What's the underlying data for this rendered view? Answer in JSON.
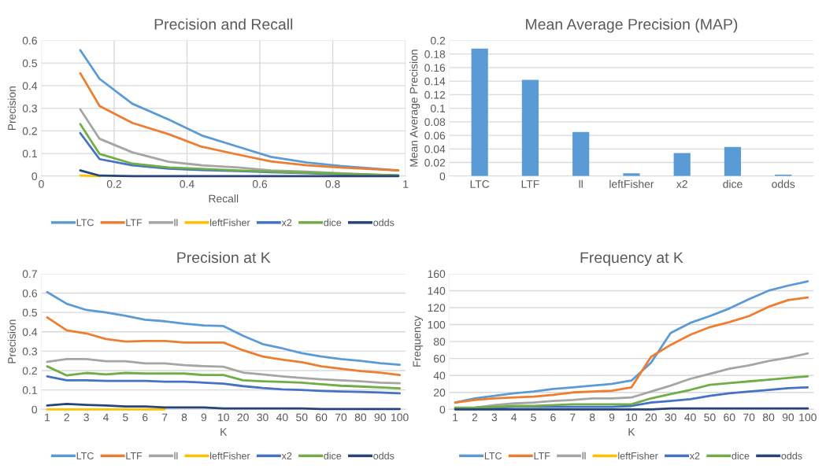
{
  "chart_data": [
    {
      "type": "line",
      "title": "Precision and Recall",
      "xlabel": "Recall",
      "ylabel": "Precision",
      "x": [
        0.107,
        0.16,
        0.25,
        0.35,
        0.44,
        0.54,
        0.63,
        0.73,
        0.82,
        0.98
      ],
      "xlim": [
        0,
        1
      ],
      "xticks": [
        0,
        0.2,
        0.4,
        0.6,
        0.8,
        1
      ],
      "ylim": [
        0,
        0.6
      ],
      "yticks": [
        0,
        0.1,
        0.2,
        0.3,
        0.4,
        0.5,
        0.6
      ],
      "grid": true,
      "legend": "bottom",
      "marker": "none",
      "line_style": "solid",
      "series": [
        {
          "name": "LTC",
          "color": "#5b9bd5",
          "values": [
            0.557,
            0.43,
            0.32,
            0.25,
            0.18,
            0.13,
            0.085,
            0.06,
            0.045,
            0.025
          ]
        },
        {
          "name": "LTF",
          "color": "#ed7d31",
          "values": [
            0.455,
            0.31,
            0.235,
            0.185,
            0.13,
            0.095,
            0.065,
            0.048,
            0.038,
            0.025
          ]
        },
        {
          "name": "ll",
          "color": "#a5a5a5",
          "values": [
            0.295,
            0.165,
            0.105,
            0.063,
            0.048,
            0.038,
            0.025,
            0.02,
            0.013,
            0.002
          ]
        },
        {
          "name": "leftFisher",
          "color": "#ffc000",
          "values": [
            0.002,
            0,
            null,
            null,
            null,
            null,
            null,
            null,
            null,
            null
          ]
        },
        {
          "name": "x2",
          "color": "#4472c4",
          "values": [
            0.19,
            0.075,
            0.048,
            0.033,
            0.027,
            0.022,
            0.017,
            0.013,
            0.008,
            0.002
          ]
        },
        {
          "name": "dice",
          "color": "#70ad47",
          "values": [
            0.23,
            0.098,
            0.055,
            0.038,
            0.032,
            0.025,
            0.02,
            0.015,
            0.01,
            0.003
          ]
        },
        {
          "name": "odds",
          "color": "#264478",
          "values": [
            0.025,
            0.002,
            0,
            0,
            0,
            0,
            0,
            0,
            0,
            0
          ]
        }
      ]
    },
    {
      "type": "bar",
      "title": "Mean Average Precision (MAP)",
      "ylabel": "Mean Average Precision",
      "categories": [
        "LTC",
        "LTF",
        "ll",
        "leftFisher",
        "x2",
        "dice",
        "odds"
      ],
      "values": [
        0.188,
        0.142,
        0.065,
        0.004,
        0.034,
        0.043,
        0.002
      ],
      "color": "#5b9bd5",
      "ylim": [
        0,
        0.2
      ],
      "yticks": [
        0,
        0.02,
        0.04,
        0.06,
        0.08,
        0.1,
        0.12,
        0.14,
        0.16,
        0.18,
        0.2
      ],
      "grid": "y"
    },
    {
      "type": "line",
      "title": "Precision at K",
      "xlabel": "K",
      "ylabel": "Precision",
      "categories": [
        "1",
        "2",
        "3",
        "4",
        "5",
        "6",
        "7",
        "8",
        "9",
        "10",
        "20",
        "30",
        "40",
        "50",
        "60",
        "70",
        "80",
        "90",
        "100"
      ],
      "ylim": [
        0,
        0.7
      ],
      "yticks": [
        0,
        0.1,
        0.2,
        0.3,
        0.4,
        0.5,
        0.6,
        0.7
      ],
      "grid": "y",
      "legend": "bottom",
      "marker": "none",
      "line_style": "solid",
      "series": [
        {
          "name": "LTC",
          "color": "#5b9bd5",
          "values": [
            0.605,
            0.545,
            0.513,
            0.5,
            0.483,
            0.463,
            0.455,
            0.442,
            0.433,
            0.43,
            0.38,
            0.337,
            0.315,
            0.29,
            0.273,
            0.26,
            0.25,
            0.238,
            0.23
          ]
        },
        {
          "name": "LTF",
          "color": "#ed7d31",
          "values": [
            0.475,
            0.408,
            0.392,
            0.363,
            0.35,
            0.353,
            0.353,
            0.345,
            0.345,
            0.345,
            0.305,
            0.273,
            0.257,
            0.243,
            0.222,
            0.21,
            0.198,
            0.19,
            0.177
          ]
        },
        {
          "name": "ll",
          "color": "#a5a5a5",
          "values": [
            0.245,
            0.26,
            0.26,
            0.248,
            0.248,
            0.237,
            0.237,
            0.228,
            0.223,
            0.22,
            0.19,
            0.18,
            0.17,
            0.162,
            0.155,
            0.15,
            0.145,
            0.138,
            0.135
          ]
        },
        {
          "name": "leftFisher",
          "color": "#ffc000",
          "values": [
            0,
            0,
            0,
            0,
            0,
            0,
            0,
            null,
            null,
            null,
            null,
            null,
            null,
            null,
            null,
            null,
            null,
            null,
            null
          ]
        },
        {
          "name": "x2",
          "color": "#4472c4",
          "values": [
            0.17,
            0.15,
            0.15,
            0.147,
            0.147,
            0.147,
            0.143,
            0.143,
            0.138,
            0.133,
            0.12,
            0.11,
            0.103,
            0.1,
            0.095,
            0.092,
            0.09,
            0.087,
            0.083
          ]
        },
        {
          "name": "dice",
          "color": "#70ad47",
          "values": [
            0.222,
            0.175,
            0.188,
            0.18,
            0.188,
            0.185,
            0.185,
            0.185,
            0.177,
            0.177,
            0.15,
            0.145,
            0.142,
            0.138,
            0.13,
            0.122,
            0.118,
            0.113,
            0.108
          ]
        },
        {
          "name": "odds",
          "color": "#264478",
          "values": [
            0.02,
            0.028,
            0.023,
            0.02,
            0.015,
            0.015,
            0.01,
            0.01,
            0.01,
            0.005,
            0.005,
            0.005,
            0.005,
            0.005,
            0.002,
            0.002,
            0.002,
            0.002,
            0.002
          ]
        }
      ]
    },
    {
      "type": "line",
      "title": "Frequency at K",
      "xlabel": "K",
      "ylabel": "Frequency",
      "categories": [
        "1",
        "2",
        "3",
        "4",
        "5",
        "6",
        "7",
        "8",
        "9",
        "10",
        "20",
        "30",
        "40",
        "50",
        "60",
        "70",
        "80",
        "90",
        "100"
      ],
      "ylim": [
        0,
        160
      ],
      "yticks": [
        0,
        20,
        40,
        60,
        80,
        100,
        120,
        140,
        160
      ],
      "grid": "y",
      "legend": "bottom",
      "marker": "none",
      "line_style": "solid",
      "series": [
        {
          "name": "LTC",
          "color": "#5b9bd5",
          "values": [
            8,
            13,
            16,
            19,
            21,
            24,
            26,
            28,
            30,
            34,
            55,
            90,
            102,
            110,
            119,
            130,
            140,
            146,
            151
          ]
        },
        {
          "name": "LTF",
          "color": "#ed7d31",
          "values": [
            8,
            11,
            13,
            14,
            15,
            17,
            20,
            21,
            22,
            26,
            62,
            76,
            88,
            97,
            103,
            110,
            121,
            129,
            132
          ]
        },
        {
          "name": "ll",
          "color": "#a5a5a5",
          "values": [
            1,
            2,
            5,
            7,
            8,
            10,
            11,
            13,
            13,
            14,
            21,
            28,
            36,
            42,
            48,
            52,
            57,
            61,
            66
          ]
        },
        {
          "name": "leftFisher",
          "color": "#ffc000",
          "values": [
            null,
            null,
            null,
            null,
            null,
            null,
            null,
            null,
            null,
            null,
            null,
            null,
            null,
            null,
            null,
            null,
            null,
            null,
            null
          ]
        },
        {
          "name": "x2",
          "color": "#4472c4",
          "values": [
            1,
            1,
            2,
            3,
            3,
            3,
            3,
            3,
            3,
            4,
            8,
            10,
            12,
            16,
            19,
            21,
            23,
            25,
            26
          ]
        },
        {
          "name": "dice",
          "color": "#70ad47",
          "values": [
            2,
            2,
            3,
            4,
            4,
            5,
            6,
            6,
            6,
            6,
            13,
            18,
            23,
            29,
            31,
            33,
            35,
            37,
            39
          ]
        },
        {
          "name": "odds",
          "color": "#264478",
          "values": [
            0,
            0,
            0,
            0,
            0,
            0,
            0,
            0,
            0,
            0,
            0,
            1,
            1,
            1,
            1,
            1,
            1,
            1,
            1
          ]
        }
      ]
    }
  ]
}
